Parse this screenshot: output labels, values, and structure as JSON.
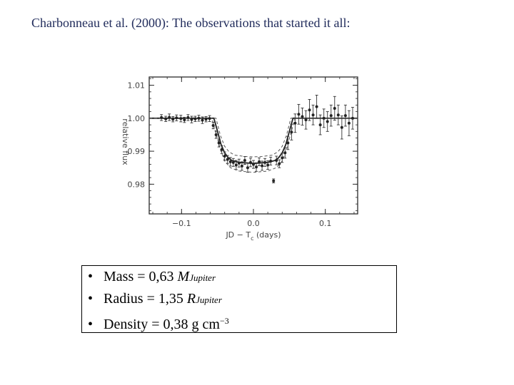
{
  "slide": {
    "title": "Charbonneau et al. (2000): The observations that started it all:"
  },
  "chart_data": {
    "type": "scatter",
    "title": "",
    "xlabel": "JD − T",
    "xlabel_subscript": "c",
    "xlabel_unit": "(days)",
    "ylabel": "relative flux",
    "xlim": [
      -0.145,
      0.145
    ],
    "ylim": [
      0.971,
      1.0125
    ],
    "xticks": [
      -0.1,
      0.0,
      0.1
    ],
    "xtick_labels": [
      "−0.1",
      "0.0",
      "0.1"
    ],
    "yticks": [
      0.98,
      0.99,
      1.0,
      1.01
    ],
    "ytick_labels": [
      "0.98",
      "0.99",
      "1.00",
      "1.01"
    ],
    "grid": false,
    "series": [
      {
        "kind": "points_with_errorbars",
        "x": [
          -0.128,
          -0.122,
          -0.117,
          -0.112,
          -0.107,
          -0.101,
          -0.096,
          -0.091,
          -0.086,
          -0.081,
          -0.076,
          -0.071,
          -0.066,
          -0.061,
          -0.056,
          -0.052,
          -0.048,
          -0.044,
          -0.04,
          -0.036,
          -0.032,
          -0.028,
          -0.024,
          -0.02,
          -0.016,
          -0.012,
          -0.008,
          -0.004,
          0.0,
          0.004,
          0.008,
          0.012,
          0.016,
          0.02,
          0.024,
          0.028,
          0.032,
          0.036,
          0.04,
          0.044,
          0.048,
          0.053,
          0.058,
          0.063,
          0.068,
          0.073,
          0.078,
          0.083,
          0.088,
          0.093,
          0.098,
          0.103,
          0.108,
          0.113,
          0.118,
          0.123,
          0.128,
          0.133,
          0.138
        ],
        "y": [
          1.0002,
          0.9998,
          1.0003,
          0.9997,
          1.0001,
          0.9999,
          0.9995,
          1.0002,
          0.9996,
          0.9998,
          1.0,
          0.9994,
          0.9997,
          0.9999,
          0.9978,
          0.995,
          0.9925,
          0.9905,
          0.9885,
          0.9875,
          0.9868,
          0.9866,
          0.9858,
          0.9864,
          0.9855,
          0.9872,
          0.985,
          0.9866,
          0.986,
          0.9852,
          0.9868,
          0.9856,
          0.9866,
          0.9858,
          0.987,
          0.981,
          0.9872,
          0.9862,
          0.988,
          0.9895,
          0.9925,
          0.9958,
          0.9985,
          1.0012,
          1.0005,
          0.9995,
          1.0025,
          1.001,
          1.0035,
          0.998,
          1.0,
          0.999,
          1.0008,
          1.003,
          1.001,
          0.9972,
          1.0008,
          0.9985,
          1.0
        ],
        "err": [
          0.0009,
          0.0008,
          0.001,
          0.0008,
          0.0009,
          0.001,
          0.0008,
          0.0009,
          0.001,
          0.0008,
          0.0009,
          0.001,
          0.0008,
          0.0009,
          0.001,
          0.0011,
          0.0012,
          0.0012,
          0.0013,
          0.0012,
          0.0013,
          0.0012,
          0.0014,
          0.0012,
          0.0013,
          0.0012,
          0.0014,
          0.0013,
          0.0012,
          0.0013,
          0.0012,
          0.0014,
          0.0012,
          0.0013,
          0.0012,
          0.0006,
          0.0013,
          0.0012,
          0.0014,
          0.0016,
          0.002,
          0.0024,
          0.0028,
          0.003,
          0.0026,
          0.0028,
          0.0032,
          0.003,
          0.0035,
          0.003,
          0.0028,
          0.003,
          0.0032,
          0.0036,
          0.003,
          0.0035,
          0.0032,
          0.0038,
          0.0033
        ]
      },
      {
        "kind": "model_line",
        "x": [
          -0.145,
          -0.055,
          -0.05,
          -0.045,
          -0.04,
          -0.035,
          -0.03,
          -0.02,
          0.0,
          0.02,
          0.03,
          0.035,
          0.04,
          0.045,
          0.05,
          0.055,
          0.145
        ],
        "y": [
          1.0,
          1.0,
          0.996,
          0.992,
          0.9895,
          0.988,
          0.9872,
          0.9866,
          0.9863,
          0.9866,
          0.9872,
          0.988,
          0.9895,
          0.992,
          0.996,
          1.0,
          1.0
        ]
      },
      {
        "kind": "model_upper_dashed",
        "x": [
          -0.145,
          -0.052,
          -0.046,
          -0.04,
          -0.034,
          -0.026,
          -0.012,
          0.0,
          0.012,
          0.026,
          0.034,
          0.04,
          0.046,
          0.052,
          0.145
        ],
        "y": [
          1.0,
          1.0,
          0.9948,
          0.9915,
          0.9898,
          0.9888,
          0.9884,
          0.9883,
          0.9884,
          0.9888,
          0.9898,
          0.9915,
          0.9948,
          1.0,
          1.0
        ]
      },
      {
        "kind": "model_lower_dashed",
        "x": [
          -0.145,
          -0.058,
          -0.052,
          -0.046,
          -0.04,
          -0.032,
          -0.02,
          0.0,
          0.02,
          0.032,
          0.04,
          0.046,
          0.052,
          0.058,
          0.145
        ],
        "y": [
          1.0,
          1.0,
          0.9955,
          0.9905,
          0.987,
          0.985,
          0.984,
          0.9836,
          0.984,
          0.985,
          0.987,
          0.9905,
          0.9955,
          1.0,
          1.0
        ]
      }
    ]
  },
  "info": {
    "mass": {
      "label": "Mass",
      "eq": "= 0,63",
      "sym": "M",
      "sub": "Jupiter"
    },
    "radius": {
      "label": "Radius",
      "eq": "= 1,35",
      "sym": "R",
      "sub": "Jupiter"
    },
    "density": {
      "label": "Density",
      "eq": "= 0,38 g cm",
      "sup": "−3"
    }
  }
}
